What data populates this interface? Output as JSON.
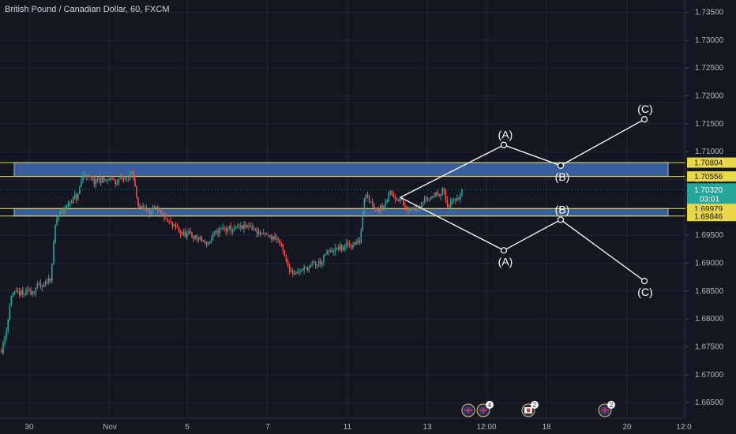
{
  "header": {
    "title": "British Pound / Canadian Dollar, 60, FXCM"
  },
  "colors": {
    "background": "#131722",
    "up": "#26a69a",
    "down": "#ef5350",
    "zone": "#3f6cb0",
    "zone_border": "#e8d847",
    "wave": "#ffffff",
    "current": "#26a69a"
  },
  "chart_data": {
    "type": "candlestick",
    "symbol": "British Pound / Canadian Dollar",
    "interval": "60",
    "source": "FXCM",
    "y_ticks": [
      "1.73500",
      "1.73000",
      "1.72500",
      "1.72000",
      "1.71500",
      "1.71000",
      "1.70500",
      "1.70000",
      "1.69500",
      "1.69000",
      "1.68500",
      "1.68000",
      "1.67500",
      "1.67000",
      "1.66500"
    ],
    "x_ticks": [
      "30",
      "Nov",
      "5",
      "7",
      "11",
      "13",
      "12:00",
      "18",
      "20",
      "12:0"
    ],
    "ylim": [
      1.6622,
      1.7372
    ],
    "zones": [
      {
        "name": "resistance",
        "top": 1.70804,
        "bottom": 1.70556,
        "top_label": "1.70804",
        "bottom_label": "1.70556"
      },
      {
        "name": "support",
        "top": 1.69979,
        "bottom": 1.69846,
        "top_label": "1.69979",
        "bottom_label": "1.69846"
      }
    ],
    "current_price": {
      "value": 1.7032,
      "label": "1.70320",
      "countdown": "03:01"
    },
    "wave_bullish": {
      "points": [
        {
          "label": "",
          "price": 1.7018
        },
        {
          "label": "(A)",
          "price": 1.7112
        },
        {
          "label": "(B)",
          "price": 1.7075
        },
        {
          "label": "(C)",
          "price": 1.7158
        }
      ]
    },
    "wave_bearish": {
      "points": [
        {
          "label": "",
          "price": 1.7018
        },
        {
          "label": "(A)",
          "price": 1.6923
        },
        {
          "label": "(B)",
          "price": 1.6978
        },
        {
          "label": "(C)",
          "price": 1.6868
        }
      ]
    },
    "event_markers": [
      {
        "name": "uk-event-1",
        "count": ""
      },
      {
        "name": "uk-event-2",
        "count": "4"
      },
      {
        "name": "ca-event",
        "count": "2"
      },
      {
        "name": "uk-event-3",
        "count": "2"
      }
    ],
    "candles_summary": "Approximately 300 hourly candles from Oct 30 to Nov 13; low near 1.6730, high near 1.7088"
  }
}
